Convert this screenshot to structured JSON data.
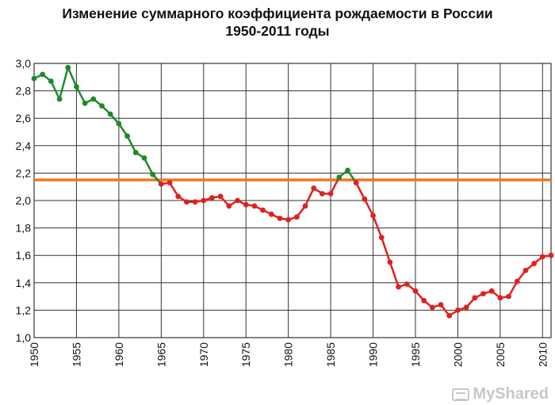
{
  "chart_data": {
    "type": "line",
    "title_lines": [
      "Изменение суммарного коэффициента рождаемости в России",
      "1950-2011 годы"
    ],
    "xlabel": "",
    "ylabel": "",
    "xlim": [
      1950,
      2011
    ],
    "ylim": [
      1.0,
      3.0
    ],
    "grid": true,
    "x_ticks": [
      1950,
      1955,
      1960,
      1965,
      1970,
      1975,
      1980,
      1985,
      1990,
      1995,
      2000,
      2005,
      2010
    ],
    "y_ticks": [
      "1,0",
      "1,2",
      "1,4",
      "1,6",
      "1,8",
      "2,0",
      "2,2",
      "2,4",
      "2,6",
      "2,8",
      "3,0"
    ],
    "y_tick_values": [
      1.0,
      1.2,
      1.4,
      1.6,
      1.8,
      2.0,
      2.2,
      2.4,
      2.6,
      2.8,
      3.0
    ],
    "replacement_level": {
      "value": 2.15,
      "color": "#f07820"
    },
    "series": [
      {
        "color": "#1f8a2a",
        "x": [
          1950,
          1951,
          1952,
          1953,
          1954,
          1955,
          1956,
          1957,
          1958,
          1959,
          1960,
          1961,
          1962,
          1963,
          1964
        ],
        "y": [
          2.89,
          2.92,
          2.87,
          2.74,
          2.97,
          2.83,
          2.71,
          2.74,
          2.69,
          2.63,
          2.56,
          2.47,
          2.35,
          2.31,
          2.19
        ]
      },
      {
        "color": "#e02020",
        "x": [
          1965,
          1966,
          1967,
          1968,
          1969,
          1970,
          1971,
          1972,
          1973,
          1974,
          1975,
          1976,
          1977,
          1978,
          1979,
          1980,
          1981,
          1982,
          1983,
          1984,
          1985
        ],
        "y": [
          2.12,
          2.13,
          2.03,
          1.99,
          1.99,
          2.0,
          2.02,
          2.03,
          1.96,
          2.0,
          1.97,
          1.96,
          1.93,
          1.9,
          1.87,
          1.86,
          1.88,
          1.96,
          2.09,
          2.05,
          2.05
        ]
      },
      {
        "color": "#1f8a2a",
        "x": [
          1986,
          1987
        ],
        "y": [
          2.17,
          2.22
        ]
      },
      {
        "color": "#e02020",
        "x": [
          1988,
          1989,
          1990,
          1991,
          1992,
          1993,
          1994,
          1995,
          1996,
          1997,
          1998,
          1999,
          2000,
          2001,
          2002,
          2003,
          2004,
          2005,
          2006,
          2007,
          2008,
          2009,
          2010,
          2011
        ],
        "y": [
          2.13,
          2.01,
          1.89,
          1.73,
          1.55,
          1.37,
          1.39,
          1.34,
          1.27,
          1.22,
          1.24,
          1.16,
          1.2,
          1.22,
          1.29,
          1.32,
          1.34,
          1.29,
          1.3,
          1.41,
          1.49,
          1.54,
          1.59,
          1.6
        ]
      }
    ]
  },
  "colors": {
    "grid": "#333333",
    "axis_text": "#111111",
    "watermark": "#c7c7c7"
  },
  "watermark": {
    "text": "MyShared",
    "icon": "projector-icon"
  }
}
